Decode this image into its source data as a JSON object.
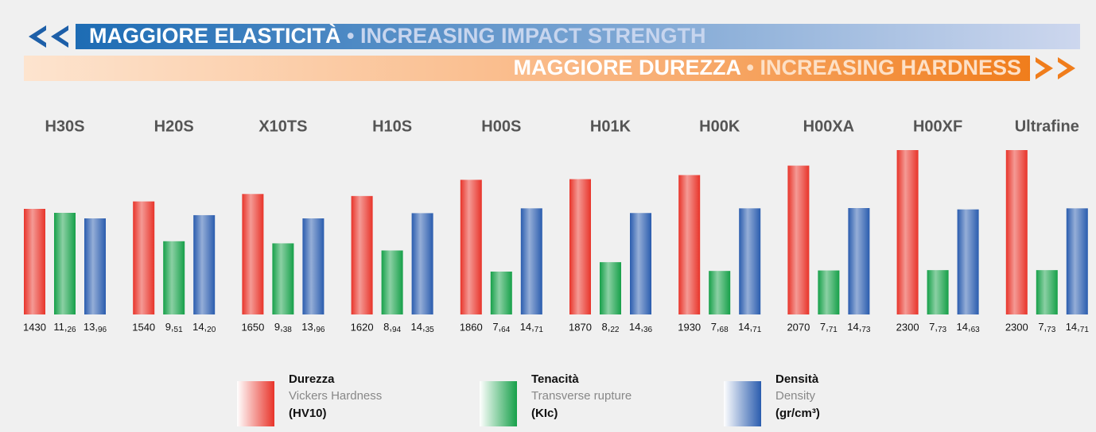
{
  "banners": [
    {
      "title": "MAGGIORE ELASTICITÀ",
      "separator": "•",
      "subtitle": "INCREASING IMPACT STRENGTH"
    },
    {
      "title": "MAGGIORE DUREZZA",
      "separator": "•",
      "subtitle": "INCREASING HARDNESS"
    }
  ],
  "chart_data": {
    "type": "bar",
    "categories": [
      "H30S",
      "H20S",
      "X10TS",
      "H10S",
      "H00S",
      "H01K",
      "H00K",
      "H00XA",
      "H00XF",
      "Ultrafine"
    ],
    "series": [
      {
        "name": "Durezza",
        "label": "Vickers Hardness",
        "unit": "(HV10)",
        "color": "#e8342a",
        "values": [
          1430,
          1540,
          1650,
          1620,
          1860,
          1870,
          1930,
          2070,
          2300,
          2300
        ]
      },
      {
        "name": "Tenacità",
        "label": "Transverse rupture",
        "unit": "(KIc)",
        "color": "#16a049",
        "values": [
          11.26,
          9.51,
          9.38,
          8.94,
          7.64,
          8.22,
          7.68,
          7.71,
          7.73,
          7.73
        ],
        "value_labels": [
          "11,26",
          "9,51",
          "9,38",
          "8,94",
          "7,64",
          "8,22",
          "7,68",
          "7,71",
          "7,73",
          "7,73"
        ]
      },
      {
        "name": "Densità",
        "label": "Density",
        "unit": "(gr/cm³)",
        "color": "#2a5cae",
        "values": [
          13.96,
          14.2,
          13.96,
          14.35,
          14.71,
          14.36,
          14.71,
          14.73,
          14.63,
          14.71
        ],
        "value_labels": [
          "13,96",
          "14,20",
          "13,96",
          "14,35",
          "14,71",
          "14,36",
          "14,71",
          "14,73",
          "14,63",
          "14,71"
        ]
      }
    ]
  }
}
